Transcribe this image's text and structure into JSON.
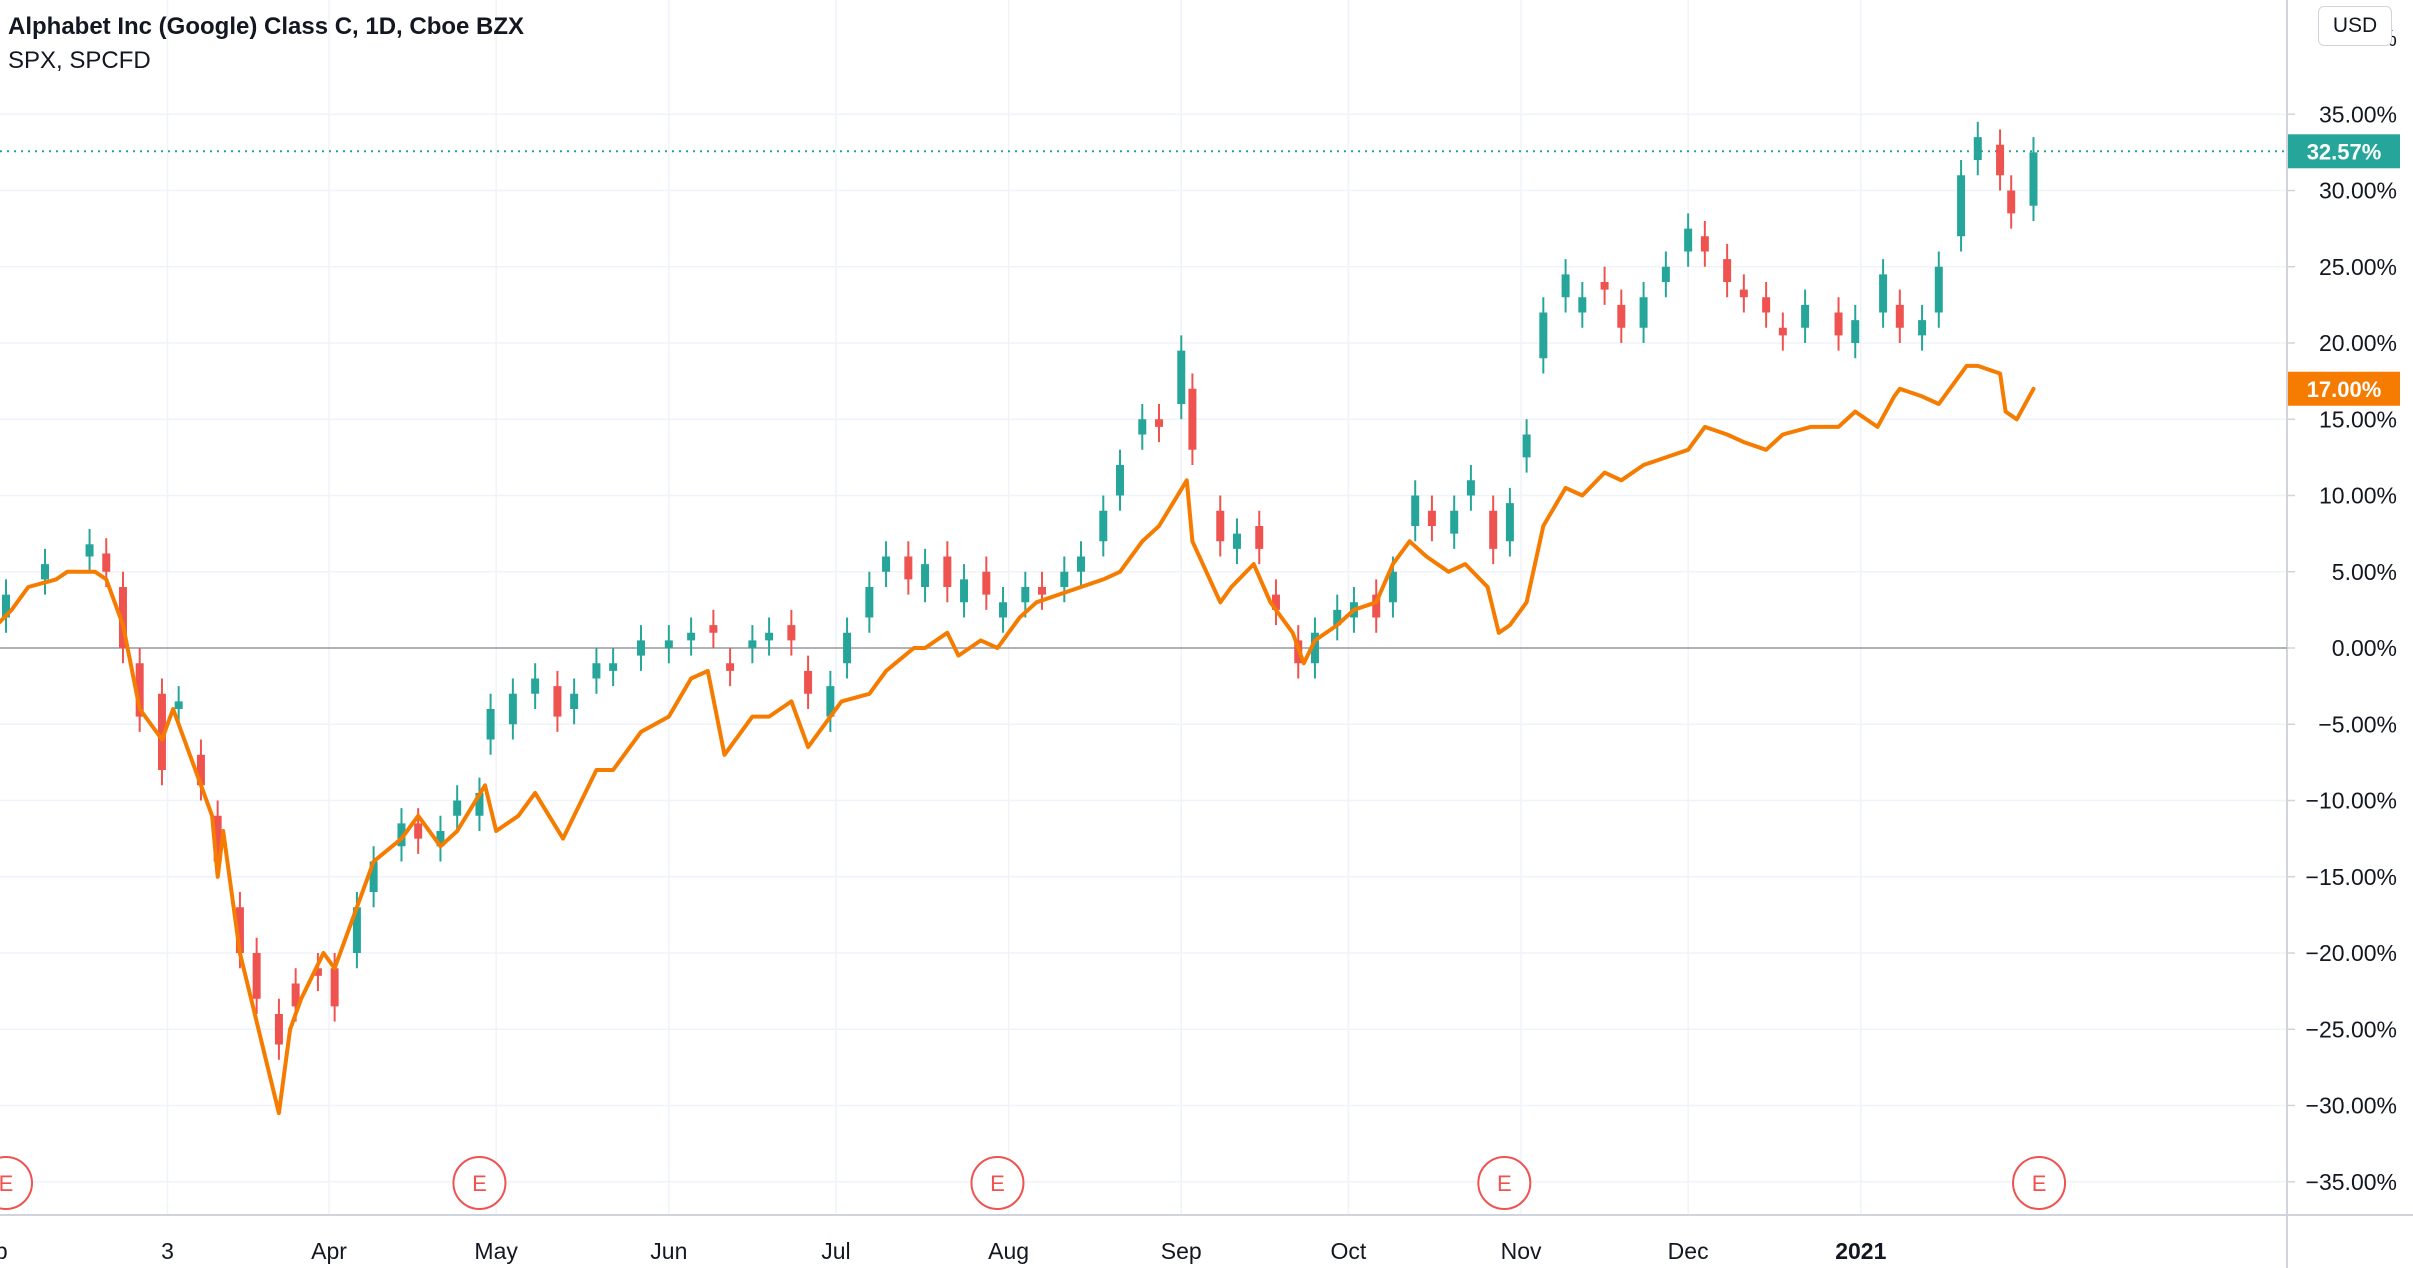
{
  "legend": {
    "main_symbol": "Alphabet Inc (Google) Class C, 1D, Cboe BZX",
    "compare_symbol": "SPX, SPCFD"
  },
  "currency_button": "USD",
  "colors": {
    "up": "#26a69a",
    "down": "#ef5350",
    "compare_line": "#f57c00",
    "grid": "#f0f3fa",
    "zero_line": "#9598a1",
    "earnings": "#ef5350"
  },
  "badges": {
    "main_last": "32.57%",
    "compare_last": "17.00%"
  },
  "earnings_marker_label": "E",
  "chart_data": {
    "type": "candlestick_with_line",
    "y_unit": "percent change",
    "ylim": [
      -38,
      42
    ],
    "y_ticks": [
      {
        "value": 35,
        "label": "35.00%"
      },
      {
        "value": 30,
        "label": "30.00%"
      },
      {
        "value": 25,
        "label": "25.00%"
      },
      {
        "value": 20,
        "label": "20.00%"
      },
      {
        "value": 15,
        "label": "15.00%"
      },
      {
        "value": 10,
        "label": "10.00%"
      },
      {
        "value": 5,
        "label": "5.00%"
      },
      {
        "value": 0,
        "label": "0.00%"
      },
      {
        "value": -5,
        "label": "−5.00%"
      },
      {
        "value": -10,
        "label": "−10.00%"
      },
      {
        "value": -15,
        "label": "−15.00%"
      },
      {
        "value": -20,
        "label": "−20.00%"
      },
      {
        "value": -25,
        "label": "−25.00%"
      },
      {
        "value": -30,
        "label": "−30.00%"
      },
      {
        "value": -35,
        "label": "−35.00%"
      }
    ],
    "x_ticks": [
      {
        "date": "2020-02-01",
        "label": "eb"
      },
      {
        "date": "2020-03-03",
        "label": "3"
      },
      {
        "date": "2020-04-01",
        "label": "Apr"
      },
      {
        "date": "2020-05-01",
        "label": "May"
      },
      {
        "date": "2020-06-01",
        "label": "Jun"
      },
      {
        "date": "2020-07-01",
        "label": "Jul"
      },
      {
        "date": "2020-08-01",
        "label": "Aug"
      },
      {
        "date": "2020-09-01",
        "label": "Sep"
      },
      {
        "date": "2020-10-01",
        "label": "Oct"
      },
      {
        "date": "2020-11-01",
        "label": "Nov"
      },
      {
        "date": "2020-12-01",
        "label": "Dec"
      },
      {
        "date": "2021-01-01",
        "label": "2021"
      }
    ],
    "x_range": [
      "2020-01-31",
      "2021-02-28"
    ],
    "earnings_dates": [
      "2020-02-03",
      "2020-04-28",
      "2020-07-30",
      "2020-10-29",
      "2021-02-02"
    ],
    "series": [
      {
        "name": "Alphabet Inc (Google) Class C",
        "kind": "candlestick",
        "last_value": 32.57,
        "points": [
          [
            "2020-02-03",
            2.0,
            3.5
          ],
          [
            "2020-02-10",
            4.5,
            5.5
          ],
          [
            "2020-02-18",
            6.0,
            6.8
          ],
          [
            "2020-02-21",
            6.2,
            5.0
          ],
          [
            "2020-02-24",
            4.0,
            0.0
          ],
          [
            "2020-02-27",
            -1.0,
            -4.5
          ],
          [
            "2020-03-02",
            -3.0,
            -8.0
          ],
          [
            "2020-03-05",
            -4.0,
            -3.5
          ],
          [
            "2020-03-09",
            -7.0,
            -9.0
          ],
          [
            "2020-03-12",
            -11.0,
            -14.0
          ],
          [
            "2020-03-16",
            -17.0,
            -20.0
          ],
          [
            "2020-03-19",
            -20.0,
            -23.0
          ],
          [
            "2020-03-23",
            -24.0,
            -26.0
          ],
          [
            "2020-03-26",
            -22.0,
            -23.5
          ],
          [
            "2020-03-30",
            -21.0,
            -21.5
          ],
          [
            "2020-04-02",
            -21.0,
            -23.5
          ],
          [
            "2020-04-06",
            -20.0,
            -17.0
          ],
          [
            "2020-04-09",
            -16.0,
            -14.0
          ],
          [
            "2020-04-14",
            -13.0,
            -11.5
          ],
          [
            "2020-04-17",
            -11.5,
            -12.5
          ],
          [
            "2020-04-21",
            -13.0,
            -12.0
          ],
          [
            "2020-04-24",
            -11.0,
            -10.0
          ],
          [
            "2020-04-28",
            -11.0,
            -9.5
          ],
          [
            "2020-04-30",
            -6.0,
            -4.0
          ],
          [
            "2020-05-04",
            -5.0,
            -3.0
          ],
          [
            "2020-05-08",
            -3.0,
            -2.0
          ],
          [
            "2020-05-12",
            -2.5,
            -4.5
          ],
          [
            "2020-05-15",
            -4.0,
            -3.0
          ],
          [
            "2020-05-19",
            -2.0,
            -1.0
          ],
          [
            "2020-05-22",
            -1.5,
            -1.0
          ],
          [
            "2020-05-27",
            -0.5,
            0.5
          ],
          [
            "2020-06-01",
            0.0,
            0.5
          ],
          [
            "2020-06-05",
            0.5,
            1.0
          ],
          [
            "2020-06-09",
            1.5,
            1.0
          ],
          [
            "2020-06-12",
            -1.0,
            -1.5
          ],
          [
            "2020-06-16",
            0.0,
            0.5
          ],
          [
            "2020-06-19",
            0.5,
            1.0
          ],
          [
            "2020-06-23",
            1.5,
            0.5
          ],
          [
            "2020-06-26",
            -1.5,
            -3.0
          ],
          [
            "2020-06-30",
            -4.5,
            -2.5
          ],
          [
            "2020-07-03",
            -1.0,
            1.0
          ],
          [
            "2020-07-07",
            2.0,
            4.0
          ],
          [
            "2020-07-10",
            5.0,
            6.0
          ],
          [
            "2020-07-14",
            6.0,
            4.5
          ],
          [
            "2020-07-17",
            4.0,
            5.5
          ],
          [
            "2020-07-21",
            6.0,
            4.0
          ],
          [
            "2020-07-24",
            3.0,
            4.5
          ],
          [
            "2020-07-28",
            5.0,
            3.5
          ],
          [
            "2020-07-31",
            2.0,
            3.0
          ],
          [
            "2020-08-04",
            3.0,
            4.0
          ],
          [
            "2020-08-07",
            4.0,
            3.5
          ],
          [
            "2020-08-11",
            4.0,
            5.0
          ],
          [
            "2020-08-14",
            5.0,
            6.0
          ],
          [
            "2020-08-18",
            7.0,
            9.0
          ],
          [
            "2020-08-21",
            10.0,
            12.0
          ],
          [
            "2020-08-25",
            14.0,
            15.0
          ],
          [
            "2020-08-28",
            15.0,
            14.5
          ],
          [
            "2020-09-01",
            16.0,
            19.5
          ],
          [
            "2020-09-03",
            17.0,
            13.0
          ],
          [
            "2020-09-08",
            9.0,
            7.0
          ],
          [
            "2020-09-11",
            6.5,
            7.5
          ],
          [
            "2020-09-15",
            8.0,
            6.5
          ],
          [
            "2020-09-18",
            3.5,
            2.5
          ],
          [
            "2020-09-22",
            0.5,
            -1.0
          ],
          [
            "2020-09-25",
            -1.0,
            1.0
          ],
          [
            "2020-09-29",
            1.5,
            2.5
          ],
          [
            "2020-10-02",
            2.0,
            3.0
          ],
          [
            "2020-10-06",
            3.5,
            2.0
          ],
          [
            "2020-10-09",
            3.0,
            5.0
          ],
          [
            "2020-10-13",
            8.0,
            10.0
          ],
          [
            "2020-10-16",
            9.0,
            8.0
          ],
          [
            "2020-10-20",
            7.5,
            9.0
          ],
          [
            "2020-10-23",
            10.0,
            11.0
          ],
          [
            "2020-10-27",
            9.0,
            6.5
          ],
          [
            "2020-10-30",
            7.0,
            9.5
          ],
          [
            "2020-11-02",
            12.5,
            14.0
          ],
          [
            "2020-11-05",
            19.0,
            22.0
          ],
          [
            "2020-11-09",
            23.0,
            24.5
          ],
          [
            "2020-11-12",
            22.0,
            23.0
          ],
          [
            "2020-11-16",
            24.0,
            23.5
          ],
          [
            "2020-11-19",
            22.5,
            21.0
          ],
          [
            "2020-11-23",
            21.0,
            23.0
          ],
          [
            "2020-11-27",
            24.0,
            25.0
          ],
          [
            "2020-12-01",
            26.0,
            27.5
          ],
          [
            "2020-12-04",
            27.0,
            26.0
          ],
          [
            "2020-12-08",
            25.5,
            24.0
          ],
          [
            "2020-12-11",
            23.5,
            23.0
          ],
          [
            "2020-12-15",
            23.0,
            22.0
          ],
          [
            "2020-12-18",
            21.0,
            20.5
          ],
          [
            "2020-12-22",
            21.0,
            22.5
          ],
          [
            "2020-12-28",
            22.0,
            20.5
          ],
          [
            "2020-12-31",
            20.0,
            21.5
          ],
          [
            "2021-01-05",
            22.0,
            24.5
          ],
          [
            "2021-01-08",
            22.5,
            21.0
          ],
          [
            "2021-01-12",
            20.5,
            21.5
          ],
          [
            "2021-01-15",
            22.0,
            25.0
          ],
          [
            "2021-01-19",
            27.0,
            31.0
          ],
          [
            "2021-01-22",
            32.0,
            33.5
          ],
          [
            "2021-01-26",
            33.0,
            31.0
          ],
          [
            "2021-01-28",
            30.0,
            28.5
          ],
          [
            "2021-02-01",
            29.0,
            32.5
          ]
        ]
      },
      {
        "name": "SPX",
        "kind": "line",
        "last_value": 17.0,
        "points": [
          [
            "2020-01-31",
            1.0
          ],
          [
            "2020-02-04",
            2.5
          ],
          [
            "2020-02-07",
            4.0
          ],
          [
            "2020-02-12",
            4.5
          ],
          [
            "2020-02-14",
            5.0
          ],
          [
            "2020-02-19",
            5.0
          ],
          [
            "2020-02-21",
            4.5
          ],
          [
            "2020-02-24",
            1.5
          ],
          [
            "2020-02-27",
            -4.0
          ],
          [
            "2020-03-02",
            -6.0
          ],
          [
            "2020-03-04",
            -4.0
          ],
          [
            "2020-03-09",
            -9.0
          ],
          [
            "2020-03-11",
            -11.0
          ],
          [
            "2020-03-12",
            -15.0
          ],
          [
            "2020-03-13",
            -12.0
          ],
          [
            "2020-03-16",
            -20.0
          ],
          [
            "2020-03-18",
            -23.0
          ],
          [
            "2020-03-20",
            -26.0
          ],
          [
            "2020-03-23",
            -30.5
          ],
          [
            "2020-03-25",
            -25.0
          ],
          [
            "2020-03-27",
            -23.0
          ],
          [
            "2020-03-31",
            -20.0
          ],
          [
            "2020-04-02",
            -21.0
          ],
          [
            "2020-04-06",
            -17.0
          ],
          [
            "2020-04-09",
            -14.0
          ],
          [
            "2020-04-14",
            -12.5
          ],
          [
            "2020-04-17",
            -11.0
          ],
          [
            "2020-04-21",
            -13.0
          ],
          [
            "2020-04-24",
            -12.0
          ],
          [
            "2020-04-29",
            -9.0
          ],
          [
            "2020-05-01",
            -12.0
          ],
          [
            "2020-05-05",
            -11.0
          ],
          [
            "2020-05-08",
            -9.5
          ],
          [
            "2020-05-13",
            -12.5
          ],
          [
            "2020-05-15",
            -11.0
          ],
          [
            "2020-05-19",
            -8.0
          ],
          [
            "2020-05-22",
            -8.0
          ],
          [
            "2020-05-27",
            -5.5
          ],
          [
            "2020-06-01",
            -4.5
          ],
          [
            "2020-06-05",
            -2.0
          ],
          [
            "2020-06-08",
            -1.5
          ],
          [
            "2020-06-11",
            -7.0
          ],
          [
            "2020-06-16",
            -4.5
          ],
          [
            "2020-06-19",
            -4.5
          ],
          [
            "2020-06-23",
            -3.5
          ],
          [
            "2020-06-26",
            -6.5
          ],
          [
            "2020-06-30",
            -4.5
          ],
          [
            "2020-07-02",
            -3.5
          ],
          [
            "2020-07-07",
            -3.0
          ],
          [
            "2020-07-10",
            -1.5
          ],
          [
            "2020-07-15",
            0.0
          ],
          [
            "2020-07-17",
            0.0
          ],
          [
            "2020-07-21",
            1.0
          ],
          [
            "2020-07-23",
            -0.5
          ],
          [
            "2020-07-27",
            0.5
          ],
          [
            "2020-07-30",
            0.0
          ],
          [
            "2020-08-03",
            2.0
          ],
          [
            "2020-08-06",
            3.0
          ],
          [
            "2020-08-10",
            3.5
          ],
          [
            "2020-08-14",
            4.0
          ],
          [
            "2020-08-18",
            4.5
          ],
          [
            "2020-08-21",
            5.0
          ],
          [
            "2020-08-25",
            7.0
          ],
          [
            "2020-08-28",
            8.0
          ],
          [
            "2020-09-02",
            11.0
          ],
          [
            "2020-09-03",
            7.0
          ],
          [
            "2020-09-08",
            3.0
          ],
          [
            "2020-09-10",
            4.0
          ],
          [
            "2020-09-14",
            5.5
          ],
          [
            "2020-09-17",
            3.0
          ],
          [
            "2020-09-21",
            1.0
          ],
          [
            "2020-09-23",
            -1.0
          ],
          [
            "2020-09-25",
            0.5
          ],
          [
            "2020-09-29",
            1.5
          ],
          [
            "2020-10-02",
            2.5
          ],
          [
            "2020-10-06",
            3.0
          ],
          [
            "2020-10-09",
            5.5
          ],
          [
            "2020-10-12",
            7.0
          ],
          [
            "2020-10-15",
            6.0
          ],
          [
            "2020-10-19",
            5.0
          ],
          [
            "2020-10-22",
            5.5
          ],
          [
            "2020-10-26",
            4.0
          ],
          [
            "2020-10-28",
            1.0
          ],
          [
            "2020-10-30",
            1.5
          ],
          [
            "2020-11-02",
            3.0
          ],
          [
            "2020-11-05",
            8.0
          ],
          [
            "2020-11-09",
            10.5
          ],
          [
            "2020-11-12",
            10.0
          ],
          [
            "2020-11-16",
            11.5
          ],
          [
            "2020-11-19",
            11.0
          ],
          [
            "2020-11-23",
            12.0
          ],
          [
            "2020-11-27",
            12.5
          ],
          [
            "2020-12-01",
            13.0
          ],
          [
            "2020-12-04",
            14.5
          ],
          [
            "2020-12-08",
            14.0
          ],
          [
            "2020-12-11",
            13.5
          ],
          [
            "2020-12-15",
            13.0
          ],
          [
            "2020-12-18",
            14.0
          ],
          [
            "2020-12-23",
            14.5
          ],
          [
            "2020-12-28",
            14.5
          ],
          [
            "2020-12-31",
            15.5
          ],
          [
            "2021-01-04",
            14.5
          ],
          [
            "2021-01-07",
            16.5
          ],
          [
            "2021-01-08",
            17.0
          ],
          [
            "2021-01-12",
            16.5
          ],
          [
            "2021-01-15",
            16.0
          ],
          [
            "2021-01-20",
            18.5
          ],
          [
            "2021-01-22",
            18.5
          ],
          [
            "2021-01-26",
            18.0
          ],
          [
            "2021-01-27",
            15.5
          ],
          [
            "2021-01-29",
            15.0
          ],
          [
            "2021-02-01",
            17.0
          ]
        ]
      }
    ]
  }
}
